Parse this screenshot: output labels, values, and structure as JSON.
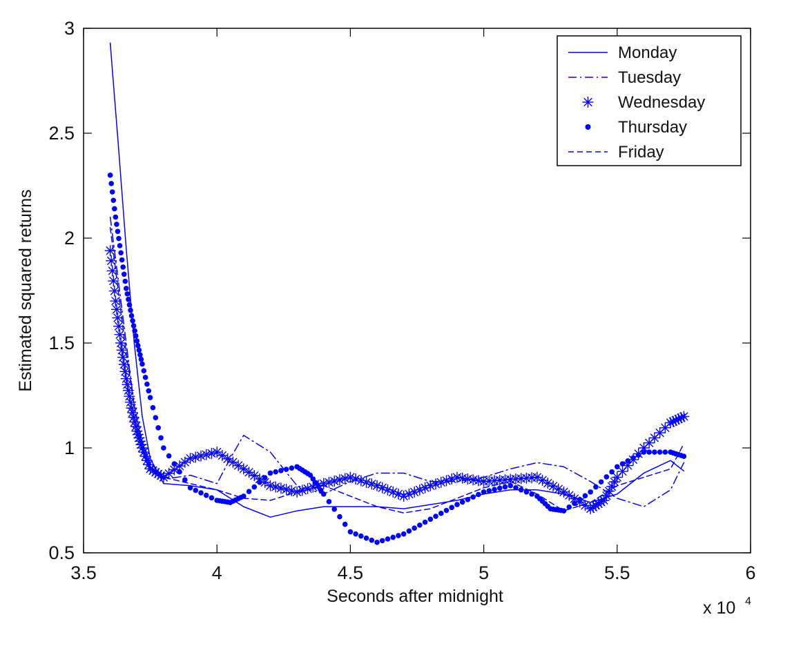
{
  "chart_data": {
    "type": "line",
    "title": "",
    "xlabel": "Seconds after midnight",
    "ylabel": "Estimated squared returns",
    "x_multiplier_label": {
      "prefix": "x 10",
      "exponent": "4"
    },
    "xlim": [
      3.5,
      6
    ],
    "ylim": [
      0.5,
      3
    ],
    "x_ticks": [
      3.5,
      4,
      4.5,
      5,
      5.5,
      6
    ],
    "x_tick_labels": [
      "3.5",
      "4",
      "4.5",
      "5",
      "5.5",
      "6"
    ],
    "y_ticks": [
      0.5,
      1,
      1.5,
      2,
      2.5,
      3
    ],
    "y_tick_labels": [
      "0.5",
      "1",
      "1.5",
      "2",
      "2.5",
      "3"
    ],
    "grid": false,
    "legend_position": "top-right",
    "series_color": "#0000ff",
    "series": [
      {
        "name": "Monday",
        "style": "solid",
        "x": [
          3.6,
          3.63,
          3.66,
          3.69,
          3.72,
          3.75,
          3.8,
          3.9,
          4.0,
          4.1,
          4.2,
          4.3,
          4.4,
          4.5,
          4.6,
          4.7,
          4.8,
          4.9,
          5.0,
          5.1,
          5.2,
          5.3,
          5.4,
          5.5,
          5.6,
          5.7,
          5.75
        ],
        "values": [
          2.93,
          2.45,
          1.95,
          1.5,
          1.15,
          0.95,
          0.83,
          0.82,
          0.8,
          0.72,
          0.67,
          0.7,
          0.72,
          0.72,
          0.72,
          0.71,
          0.73,
          0.75,
          0.78,
          0.8,
          0.8,
          0.78,
          0.74,
          0.78,
          0.88,
          0.94,
          0.89
        ]
      },
      {
        "name": "Tuesday",
        "style": "dashdot",
        "x": [
          3.6,
          3.63,
          3.66,
          3.69,
          3.72,
          3.75,
          3.8,
          3.9,
          4.0,
          4.05,
          4.1,
          4.2,
          4.3,
          4.4,
          4.5,
          4.6,
          4.7,
          4.8,
          4.9,
          5.0,
          5.1,
          5.2,
          5.3,
          5.4,
          5.5,
          5.6,
          5.7,
          5.75
        ],
        "values": [
          2.1,
          1.8,
          1.5,
          1.2,
          1.0,
          0.9,
          0.85,
          0.87,
          0.83,
          0.95,
          1.06,
          0.98,
          0.82,
          0.78,
          0.84,
          0.88,
          0.88,
          0.84,
          0.84,
          0.86,
          0.9,
          0.93,
          0.91,
          0.84,
          0.76,
          0.72,
          0.8,
          0.93
        ]
      },
      {
        "name": "Wednesday",
        "style": "star",
        "x": [
          3.6,
          3.62,
          3.64,
          3.66,
          3.68,
          3.7,
          3.72,
          3.75,
          3.8,
          3.9,
          4.0,
          4.1,
          4.2,
          4.3,
          4.4,
          4.5,
          4.6,
          4.7,
          4.8,
          4.9,
          5.0,
          5.1,
          5.2,
          5.3,
          5.4,
          5.45,
          5.5,
          5.6,
          5.7,
          5.75
        ],
        "values": [
          1.94,
          1.7,
          1.5,
          1.33,
          1.19,
          1.08,
          1.0,
          0.9,
          0.86,
          0.95,
          0.98,
          0.9,
          0.82,
          0.79,
          0.83,
          0.86,
          0.82,
          0.77,
          0.82,
          0.86,
          0.84,
          0.85,
          0.86,
          0.79,
          0.71,
          0.75,
          0.86,
          1.0,
          1.12,
          1.15
        ]
      },
      {
        "name": "Thursday",
        "style": "dot",
        "x": [
          3.6,
          3.62,
          3.64,
          3.66,
          3.68,
          3.7,
          3.72,
          3.75,
          3.8,
          3.9,
          4.0,
          4.05,
          4.1,
          4.2,
          4.3,
          4.35,
          4.4,
          4.5,
          4.6,
          4.7,
          4.8,
          4.9,
          5.0,
          5.1,
          5.2,
          5.25,
          5.3,
          5.4,
          5.5,
          5.6,
          5.7,
          5.75
        ],
        "values": [
          2.3,
          2.1,
          1.93,
          1.76,
          1.63,
          1.51,
          1.4,
          1.24,
          1.0,
          0.81,
          0.75,
          0.74,
          0.77,
          0.88,
          0.91,
          0.87,
          0.78,
          0.6,
          0.55,
          0.59,
          0.66,
          0.73,
          0.79,
          0.82,
          0.77,
          0.71,
          0.7,
          0.79,
          0.91,
          0.98,
          0.98,
          0.96
        ]
      },
      {
        "name": "Friday",
        "style": "dashed",
        "x": [
          3.6,
          3.63,
          3.66,
          3.69,
          3.72,
          3.75,
          3.8,
          3.9,
          4.0,
          4.1,
          4.2,
          4.3,
          4.4,
          4.5,
          4.6,
          4.7,
          4.8,
          4.9,
          5.0,
          5.1,
          5.2,
          5.3,
          5.4,
          5.5,
          5.6,
          5.7,
          5.75
        ],
        "values": [
          2.05,
          1.75,
          1.45,
          1.2,
          1.03,
          0.93,
          0.86,
          0.83,
          0.8,
          0.76,
          0.75,
          0.79,
          0.82,
          0.77,
          0.72,
          0.69,
          0.71,
          0.76,
          0.81,
          0.84,
          0.78,
          0.7,
          0.74,
          0.82,
          0.86,
          0.9,
          1.02
        ]
      }
    ]
  }
}
